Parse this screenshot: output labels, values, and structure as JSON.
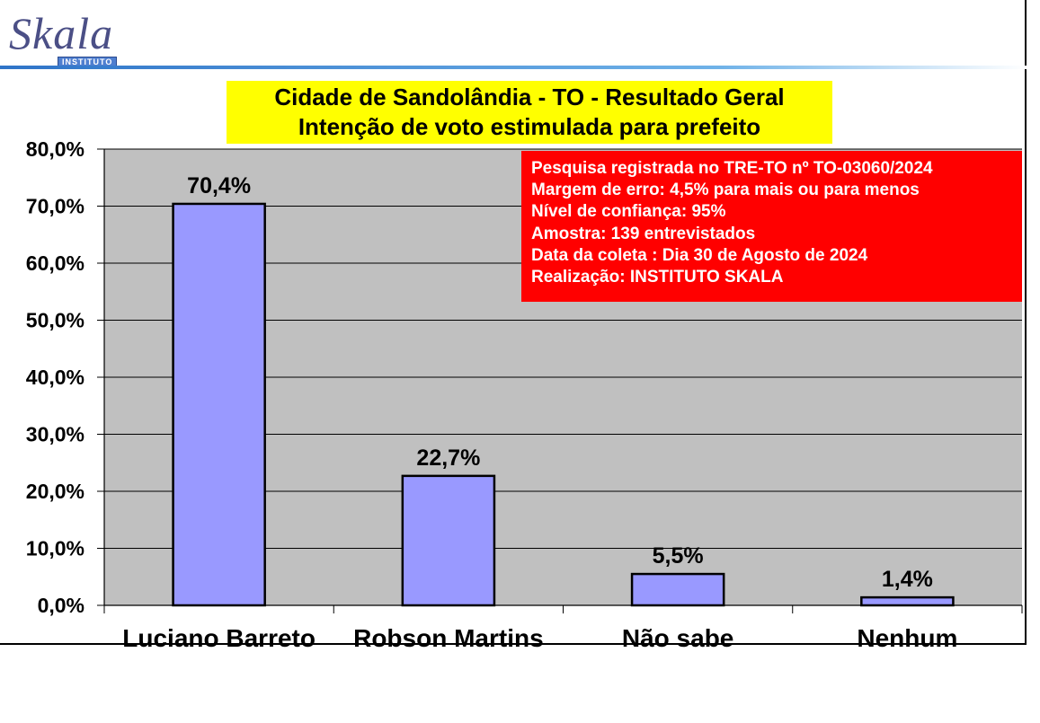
{
  "logo": {
    "word": "Skala",
    "sub": "INSTITUTO"
  },
  "chart_data": {
    "type": "bar",
    "title_lines": [
      "Cidade de Sandolândia - TO - Resultado Geral",
      "Intenção de voto estimulada para prefeito"
    ],
    "categories": [
      "Luciano Barreto",
      "Robson Martins",
      "Não sabe",
      "Nenhum"
    ],
    "values": [
      70.4,
      22.7,
      5.5,
      1.4
    ],
    "value_labels": [
      "70,4%",
      "22,7%",
      "5,5%",
      "1,4%"
    ],
    "y_ticks": [
      "0,0%",
      "10,0%",
      "20,0%",
      "30,0%",
      "40,0%",
      "50,0%",
      "60,0%",
      "70,0%",
      "80,0%"
    ],
    "ylim": [
      0,
      80
    ],
    "grid": true,
    "bar_color": "#9999ff",
    "plot_bg": "#c0c0c0"
  },
  "info_box": {
    "lines": [
      "Pesquisa registrada no TRE-TO nº TO-03060/2024",
      "Margem de erro: 4,5% para mais ou para menos",
      "Nível de confiança: 95%",
      "Amostra: 139 entrevistados",
      "Data da coleta : Dia 30 de Agosto de 2024",
      "Realização: INSTITUTO SKALA"
    ],
    "color": "#ff0000"
  }
}
